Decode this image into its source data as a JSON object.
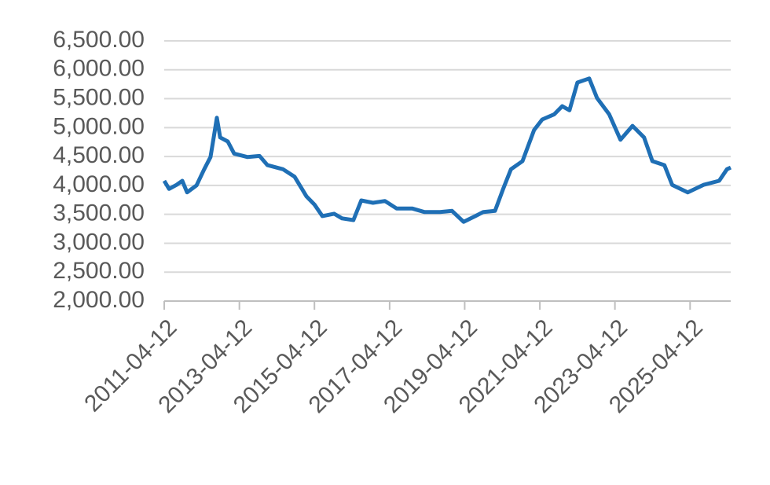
{
  "chart_data": {
    "type": "line",
    "x": [
      "2011-04-12",
      "2011-05-29",
      "2011-08-10",
      "2011-10-05",
      "2011-11-20",
      "2012-02-20",
      "2012-05-05",
      "2012-07-05",
      "2012-08-05",
      "2012-09-05",
      "2012-10-07",
      "2012-12-20",
      "2013-02-20",
      "2013-07-01",
      "2013-10-25",
      "2014-01-10",
      "2014-06-10",
      "2014-10-01",
      "2015-01-25",
      "2015-04-12",
      "2015-06-28",
      "2015-10-20",
      "2016-01-05",
      "2016-04-25",
      "2016-07-10",
      "2016-11-01",
      "2017-02-25",
      "2017-06-20",
      "2017-11-20",
      "2018-03-15",
      "2018-08-15",
      "2018-12-10",
      "2019-04-01",
      "2019-07-25",
      "2019-10-10",
      "2020-02-01",
      "2020-04-20",
      "2020-07-05",
      "2020-10-25",
      "2021-02-15",
      "2021-05-05",
      "2021-08-30",
      "2021-11-15",
      "2022-01-25",
      "2022-04-12",
      "2022-08-05",
      "2022-10-20",
      "2023-02-15",
      "2023-06-05",
      "2023-09-30",
      "2024-01-20",
      "2024-04-10",
      "2024-08-05",
      "2024-10-20",
      "2025-03-20",
      "2025-08-20",
      "2026-01-20",
      "2026-04-05",
      "2026-05-12"
    ],
    "series": [
      {
        "color": "#1f6fb5",
        "values": [
          4080,
          3940,
          4010,
          4080,
          3880,
          4000,
          4280,
          4490,
          4830,
          5170,
          4830,
          4760,
          4550,
          4490,
          4510,
          4350,
          4280,
          4150,
          3810,
          3670,
          3470,
          3510,
          3430,
          3400,
          3740,
          3700,
          3730,
          3600,
          3600,
          3540,
          3540,
          3560,
          3370,
          3470,
          3540,
          3560,
          3940,
          4280,
          4420,
          4960,
          5140,
          5230,
          5370,
          5300,
          5780,
          5850,
          5510,
          5230,
          4790,
          5030,
          4830,
          4420,
          4350,
          4010,
          3880,
          4010,
          4080,
          4280,
          4310
        ]
      }
    ],
    "xlim": [
      "2011-04-12",
      "2026-05-12"
    ],
    "xticks": [
      "2011-04-12",
      "2013-04-12",
      "2015-04-12",
      "2017-04-12",
      "2019-04-12",
      "2021-04-12",
      "2023-04-12",
      "2025-04-12"
    ],
    "ylim": [
      2000,
      6500
    ],
    "yticks": [
      {
        "value": 2000,
        "label": "2,000.00"
      },
      {
        "value": 2500,
        "label": "2,500.00"
      },
      {
        "value": 3000,
        "label": "3,000.00"
      },
      {
        "value": 3500,
        "label": "3,500.00"
      },
      {
        "value": 4000,
        "label": "4,000.00"
      },
      {
        "value": 4500,
        "label": "4,500.00"
      },
      {
        "value": 5000,
        "label": "5,000.00"
      },
      {
        "value": 5500,
        "label": "5,500.00"
      },
      {
        "value": 6000,
        "label": "6,000.00"
      },
      {
        "value": 6500,
        "label": "6,500.00"
      }
    ],
    "grid": true
  }
}
